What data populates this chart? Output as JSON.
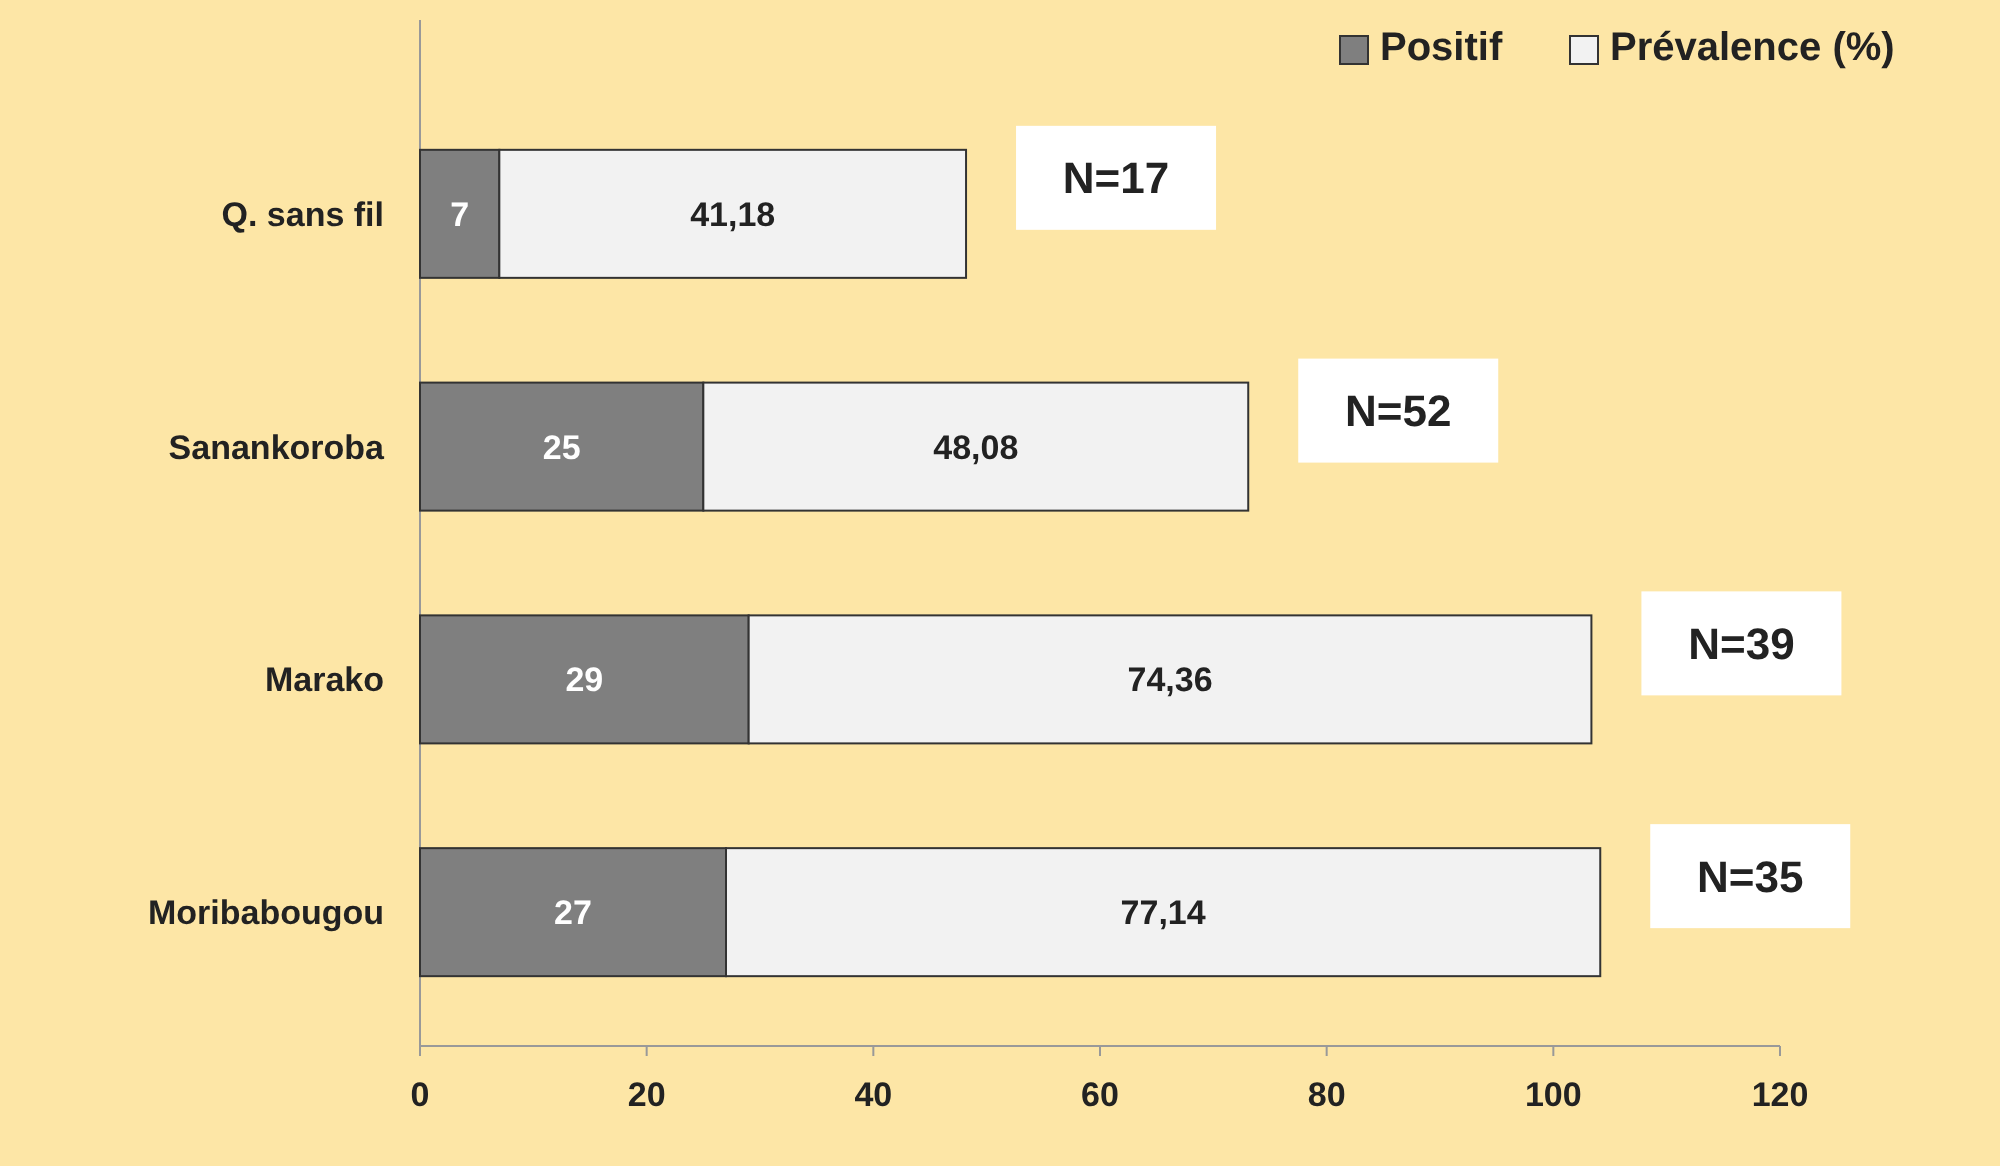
{
  "chart_data": {
    "type": "bar",
    "orientation": "horizontal",
    "stacked": true,
    "categories": [
      "Q. sans fil",
      "Sanankoroba",
      "Marako",
      "Moribabougou"
    ],
    "series": [
      {
        "name": "Positif",
        "color": "#7f7f7f",
        "values": [
          7,
          25,
          29,
          27
        ],
        "value_labels": [
          "7",
          "25",
          "29",
          "27"
        ]
      },
      {
        "name": "Prévalence (%)",
        "color": "#f2f2f2",
        "values": [
          41.18,
          48.08,
          74.36,
          77.14
        ],
        "value_labels": [
          "41,18",
          "48,08",
          "74,36",
          "77,14"
        ]
      }
    ],
    "xlim": [
      0,
      120
    ],
    "xticks": [
      0,
      20,
      40,
      60,
      80,
      100,
      120
    ],
    "legend": "top right",
    "grid": false,
    "annotations": [
      "N=17",
      "N=52",
      "N=39",
      "N=35"
    ]
  }
}
